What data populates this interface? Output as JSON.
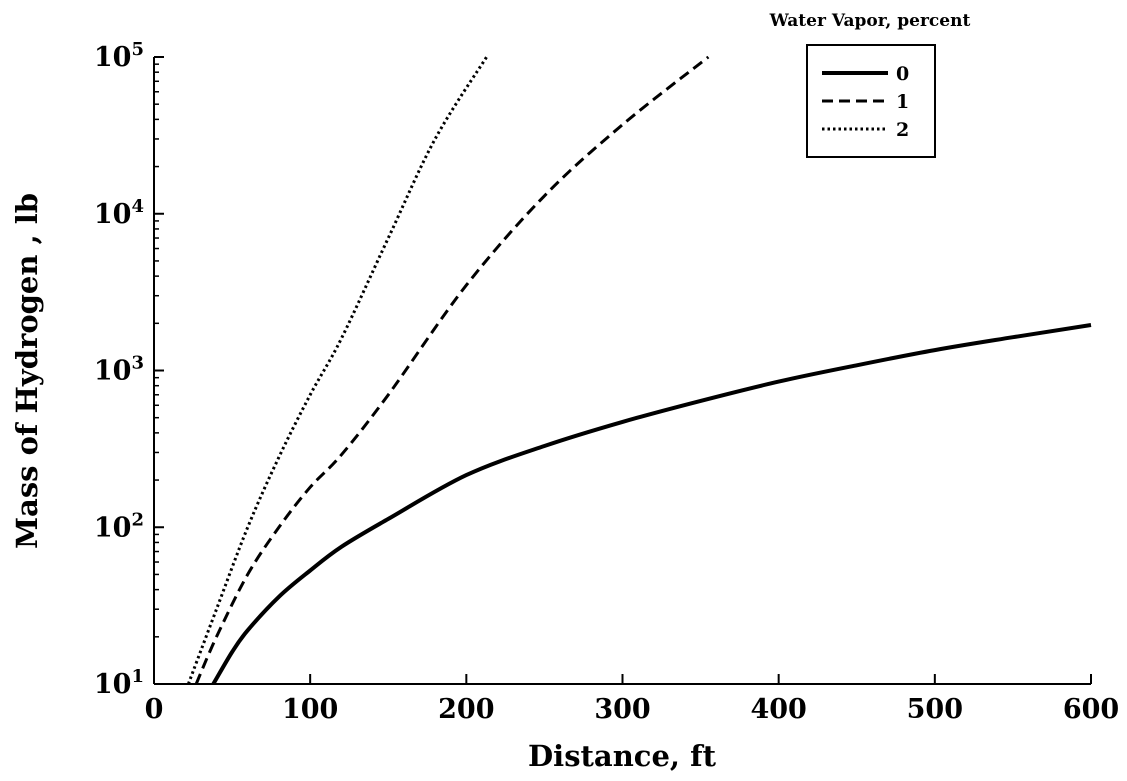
{
  "chart_data": {
    "type": "line",
    "title": "",
    "xlabel": "Distance, ft",
    "ylabel": "Mass of Hydrogen , lb",
    "xlim": [
      0,
      600
    ],
    "ylim": [
      10,
      100000
    ],
    "y_scale": "log",
    "grid": false,
    "legend": {
      "title": "Water Vapor, percent",
      "placement": "top-right"
    },
    "x_ticks": [
      0,
      100,
      200,
      300,
      400,
      500,
      600
    ],
    "x_tick_labels": [
      "0",
      "100",
      "200",
      "300",
      "400",
      "500",
      "600"
    ],
    "y_ticks": [
      {
        "value": 10,
        "base": "10",
        "exp": "1"
      },
      {
        "value": 100,
        "base": "10",
        "exp": "2"
      },
      {
        "value": 1000,
        "base": "10",
        "exp": "3"
      },
      {
        "value": 10000,
        "base": "10",
        "exp": "4"
      },
      {
        "value": 100000,
        "base": "10",
        "exp": "5"
      }
    ],
    "series": [
      {
        "name": "0",
        "dash": "solid",
        "color": "#000000",
        "x": [
          38,
          50,
          60,
          80,
          100,
          120,
          150,
          200,
          250,
          300,
          350,
          400,
          450,
          500,
          550,
          600
        ],
        "y": [
          10,
          16,
          22,
          36,
          53,
          75,
          113,
          215,
          330,
          470,
          640,
          850,
          1080,
          1350,
          1630,
          1950
        ]
      },
      {
        "name": "1",
        "dash": "dashed",
        "color": "#000000",
        "x": [
          27,
          40,
          60,
          80,
          100,
          120,
          150,
          200,
          250,
          300,
          355
        ],
        "y": [
          10,
          20,
          50,
          100,
          180,
          290,
          700,
          3500,
          13000,
          37000,
          100000
        ]
      },
      {
        "name": "2",
        "dash": "dotted",
        "color": "#000000",
        "x": [
          22,
          40,
          60,
          80,
          100,
          120,
          150,
          180,
          213
        ],
        "y": [
          10,
          30,
          100,
          280,
          700,
          1600,
          7000,
          30000,
          100000
        ]
      }
    ]
  }
}
